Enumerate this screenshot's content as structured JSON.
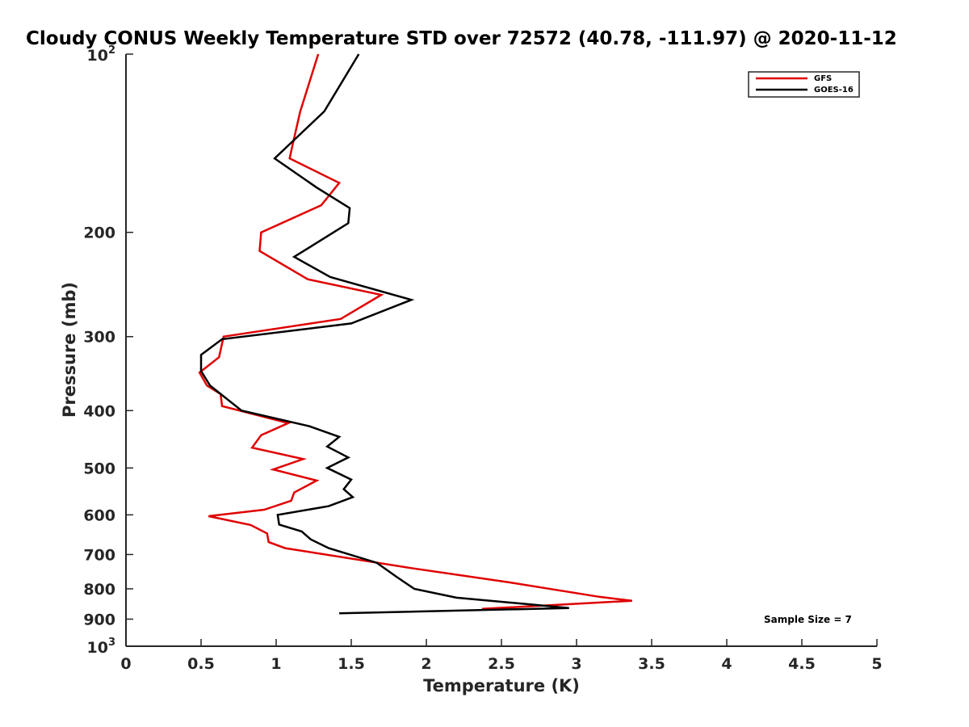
{
  "chart_data": {
    "type": "line",
    "title": "Cloudy CONUS Weekly Temperature STD over 72572 (40.78, -111.97) @ 2020-11-12",
    "xlabel": "Temperature (K)",
    "ylabel": "Pressure (mb)",
    "xlim": [
      0,
      5
    ],
    "ylim": [
      100,
      1000
    ],
    "y_scale": "log",
    "y_reversed": true,
    "grid": false,
    "legend_position": "top-right",
    "x_ticks": [
      "0",
      "0.5",
      "1",
      "1.5",
      "2",
      "2.5",
      "3",
      "3.5",
      "4",
      "4.5",
      "5"
    ],
    "y_ticks": [
      {
        "value": 100,
        "base": "10",
        "exp": "2"
      },
      {
        "value": 200,
        "label": "200"
      },
      {
        "value": 300,
        "label": "300"
      },
      {
        "value": 400,
        "label": "400"
      },
      {
        "value": 500,
        "label": "500"
      },
      {
        "value": 600,
        "label": "600"
      },
      {
        "value": 700,
        "label": "700"
      },
      {
        "value": 800,
        "label": "800"
      },
      {
        "value": 900,
        "label": "900"
      },
      {
        "value": 1000,
        "base": "10",
        "exp": "3"
      }
    ],
    "series": [
      {
        "name": "GFS",
        "color": "#e00000",
        "points": [
          [
            1.28,
            100
          ],
          [
            1.16,
            125
          ],
          [
            1.11,
            142
          ],
          [
            1.09,
            150
          ],
          [
            1.42,
            165
          ],
          [
            1.3,
            180
          ],
          [
            0.9,
            200
          ],
          [
            0.89,
            215
          ],
          [
            1.21,
            240
          ],
          [
            1.7,
            255
          ],
          [
            1.43,
            280
          ],
          [
            0.65,
            300
          ],
          [
            0.62,
            325
          ],
          [
            0.49,
            345
          ],
          [
            0.54,
            363
          ],
          [
            0.63,
            375
          ],
          [
            0.64,
            393
          ],
          [
            1.08,
            420
          ],
          [
            0.9,
            440
          ],
          [
            0.84,
            462
          ],
          [
            1.18,
            483
          ],
          [
            0.98,
            503
          ],
          [
            1.27,
            525
          ],
          [
            1.12,
            550
          ],
          [
            1.1,
            568
          ],
          [
            0.92,
            588
          ],
          [
            0.55,
            603
          ],
          [
            0.83,
            624
          ],
          [
            0.94,
            645
          ],
          [
            0.95,
            667
          ],
          [
            1.06,
            683
          ],
          [
            1.9,
            738
          ],
          [
            2.55,
            780
          ],
          [
            3.15,
            825
          ],
          [
            3.37,
            838
          ],
          [
            2.37,
            865
          ]
        ]
      },
      {
        "name": "GOES-16",
        "color": "#000000",
        "points": [
          [
            1.55,
            100
          ],
          [
            1.32,
            125
          ],
          [
            0.99,
            150
          ],
          [
            1.27,
            168
          ],
          [
            1.49,
            182
          ],
          [
            1.48,
            193
          ],
          [
            1.12,
            220
          ],
          [
            1.36,
            238
          ],
          [
            1.9,
            260
          ],
          [
            1.5,
            285
          ],
          [
            0.64,
            303
          ],
          [
            0.5,
            322
          ],
          [
            0.5,
            343
          ],
          [
            0.56,
            363
          ],
          [
            0.77,
            400
          ],
          [
            1.22,
            425
          ],
          [
            1.42,
            443
          ],
          [
            1.34,
            460
          ],
          [
            1.48,
            480
          ],
          [
            1.34,
            500
          ],
          [
            1.5,
            523
          ],
          [
            1.45,
            543
          ],
          [
            1.51,
            560
          ],
          [
            1.35,
            580
          ],
          [
            1.01,
            600
          ],
          [
            1.02,
            623
          ],
          [
            1.17,
            640
          ],
          [
            1.23,
            660
          ],
          [
            1.35,
            683
          ],
          [
            1.67,
            723
          ],
          [
            1.8,
            763
          ],
          [
            1.92,
            800
          ],
          [
            2.2,
            828
          ],
          [
            2.65,
            848
          ],
          [
            2.95,
            862
          ],
          [
            1.42,
            880
          ]
        ]
      }
    ],
    "annotation": "Sample Size = 7"
  }
}
